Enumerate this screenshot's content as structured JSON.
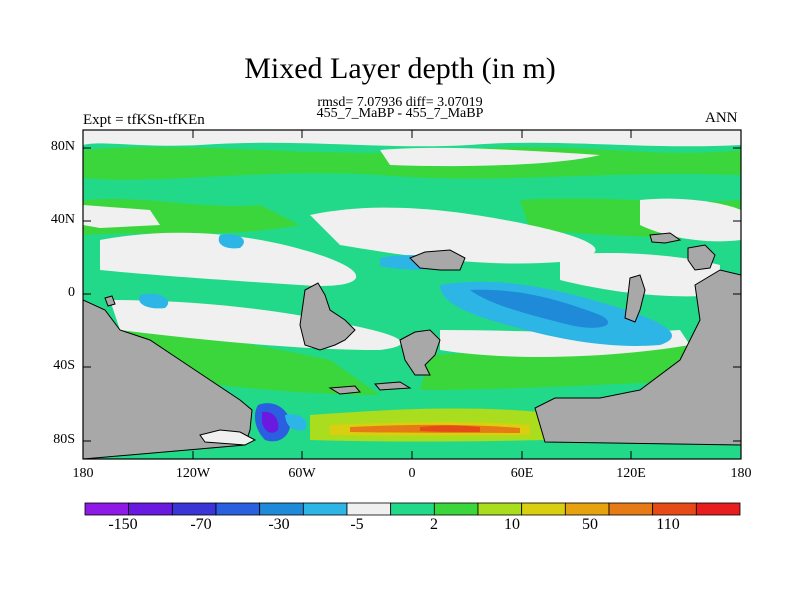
{
  "title": "Mixed Layer depth (in m)",
  "stats_line": "rmsd= 7.07936 diff= 3.07019",
  "subtitle": "455_7_MaBP - 455_7_MaBP",
  "left_label": "Expt = tfKSn-tfKEn",
  "right_label": "ANN",
  "map": {
    "projection": "cylindrical equidistant",
    "lon_range": [
      -180,
      180
    ],
    "lat_range": [
      -90,
      90
    ],
    "land_color": "#a8a8a8",
    "y_ticks": [
      "80N",
      "40N",
      "0",
      "40S",
      "80S"
    ],
    "x_ticks": [
      "180",
      "120W",
      "60W",
      "0",
      "60E",
      "120E",
      "180"
    ]
  },
  "colorbar": {
    "colors": [
      "#8f19e6",
      "#6a1ae0",
      "#3a35d6",
      "#2a5fe0",
      "#1e8ad8",
      "#2db5e6",
      "#f0f0f0",
      "#22d98a",
      "#3bd63b",
      "#a9dd1d",
      "#d9cf10",
      "#e6a30f",
      "#e67a14",
      "#e64b17",
      "#e81e1e"
    ],
    "labels": [
      "-150",
      "-70",
      "-30",
      "-5",
      "2",
      "10",
      "50",
      "110"
    ]
  }
}
